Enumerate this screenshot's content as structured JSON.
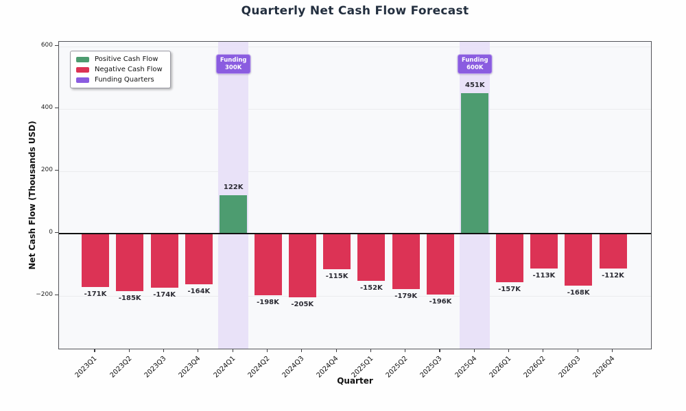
{
  "chart_data": {
    "type": "bar",
    "title": "Quarterly Net Cash Flow Forecast",
    "xlabel": "Quarter",
    "ylabel": "Net Cash Flow (Thousands USD)",
    "categories": [
      "2023Q1",
      "2023Q2",
      "2023Q3",
      "2023Q4",
      "2024Q1",
      "2024Q2",
      "2024Q3",
      "2024Q4",
      "2025Q1",
      "2025Q2",
      "2025Q3",
      "2025Q4",
      "2026Q1",
      "2026Q2",
      "2026Q3",
      "2026Q4"
    ],
    "values": [
      -171,
      -185,
      -174,
      -164,
      122,
      -198,
      -205,
      -115,
      -152,
      -179,
      -196,
      451,
      -157,
      -113,
      -168,
      -112
    ],
    "value_labels": [
      "-171K",
      "-185K",
      "-174K",
      "-164K",
      "122K",
      "-198K",
      "-205K",
      "-115K",
      "-152K",
      "-179K",
      "-196K",
      "451K",
      "-157K",
      "-113K",
      "-168K",
      "-112K"
    ],
    "y_ticks": [
      600,
      400,
      200,
      0,
      -200
    ],
    "y_tick_labels": [
      "600",
      "400",
      "200",
      "0",
      "−200"
    ],
    "ylim": [
      -374,
      615
    ],
    "grid": true,
    "zero_line": true,
    "funding_quarters": [
      {
        "quarter": "2024Q1",
        "index": 4,
        "badge_line1": "Funding",
        "badge_line2": "300K"
      },
      {
        "quarter": "2025Q4",
        "index": 11,
        "badge_line1": "Funding",
        "badge_line2": "600K"
      }
    ],
    "legend": {
      "position": "upper left",
      "entries": [
        {
          "label": "Positive Cash Flow",
          "color": "#4d9c70"
        },
        {
          "label": "Negative Cash Flow",
          "color": "#dc3355"
        },
        {
          "label": "Funding Quarters",
          "color": "#8a5ce0"
        }
      ]
    },
    "colors": {
      "positive": "#4d9c70",
      "negative": "#dc3355",
      "funding_band": "#e9e2f8",
      "funding_badge": "#8a5ce0",
      "title": "#232f3f",
      "zero_line": "#111111",
      "grid": "#ebebee"
    }
  }
}
